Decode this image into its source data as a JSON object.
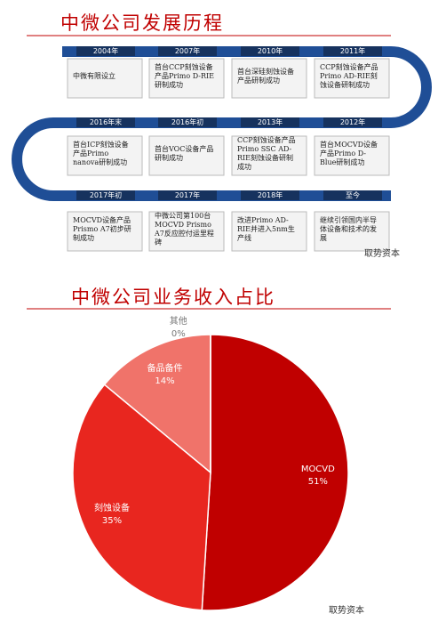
{
  "timeline": {
    "title": "中微公司发展历程",
    "events": [
      {
        "year": "2004年",
        "text": "中微有限设立"
      },
      {
        "year": "2007年",
        "text": "首台CCP刻蚀设备产品Primo D-RIE研制成功"
      },
      {
        "year": "2010年",
        "text": "首台深硅刻蚀设备产品研制成功"
      },
      {
        "year": "2011年",
        "text": "CCP刻蚀设备产品Primo AD-RIE刻蚀设备研制成功"
      },
      {
        "year": "2012年",
        "text": "首台MOCVD设备产品Primo D-Blue研制成功"
      },
      {
        "year": "2013年",
        "text": "CCP刻蚀设备产品Primo SSC AD-RIE刻蚀设备研制成功"
      },
      {
        "year": "2016年初",
        "text": "首台VOC设备产品研制成功"
      },
      {
        "year": "2016年末",
        "text": "首台ICP刻蚀设备产品Primo nanova研制成功"
      },
      {
        "year": "2017年初",
        "text": "MOCVD设备产品Prismo A7初步研制成功"
      },
      {
        "year": "2017年",
        "text": "中微公司第100台MOCVD Prismo A7反应腔付运里程碑"
      },
      {
        "year": "2018年",
        "text": "改进Primo AD-RIE并进入5nm生产线"
      },
      {
        "year": "至今",
        "text": "继续引领国内半导体设备和技术的发展"
      }
    ],
    "watermark": "取势资本"
  },
  "chart_data": {
    "type": "pie",
    "title": "中微公司业务收入占比",
    "categories": [
      "MOCVD",
      "刻蚀设备",
      "备品备件",
      "其他"
    ],
    "values": [
      51,
      35,
      14,
      0
    ],
    "value_labels": [
      "51%",
      "35%",
      "14%",
      "0%"
    ],
    "colors": [
      "#c00000",
      "#e8261f",
      "#f0736a",
      "#f4a09a"
    ],
    "watermark": "取势资本"
  }
}
